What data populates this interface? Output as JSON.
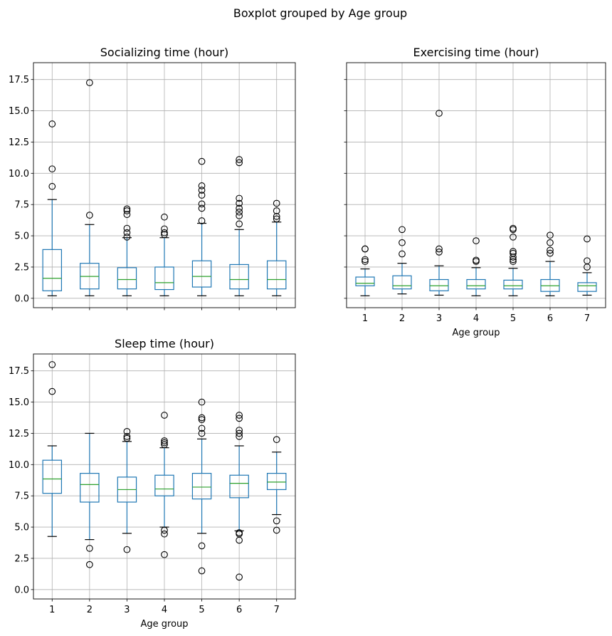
{
  "suptitle": "Boxplot grouped by Age group",
  "colors": {
    "box": "#1f77b4",
    "median": "#2ca02c",
    "grid": "#b0b0b0",
    "outlier": "#000000"
  },
  "chart_data": [
    {
      "type": "box",
      "title": "Socializing time (hour)",
      "xlabel": "",
      "ylabel": "",
      "categories": [
        "1",
        "2",
        "3",
        "4",
        "5",
        "6",
        "7"
      ],
      "ylim": [
        -0.75,
        18.85
      ],
      "yticks": [
        "0.0",
        "2.5",
        "5.0",
        "7.5",
        "10.0",
        "12.5",
        "15.0",
        "17.5"
      ],
      "grid": true,
      "boxes": [
        {
          "whislo": 0.2,
          "q1": 0.6,
          "med": 1.6,
          "q3": 3.9,
          "whishi": 7.9,
          "fliers": [
            8.95,
            10.35,
            13.95
          ]
        },
        {
          "whislo": 0.2,
          "q1": 0.75,
          "med": 1.75,
          "q3": 2.8,
          "whishi": 5.9,
          "fliers": [
            6.65,
            17.25
          ]
        },
        {
          "whislo": 0.2,
          "q1": 0.75,
          "med": 1.5,
          "q3": 2.45,
          "whishi": 4.85,
          "fliers": [
            4.9,
            5.25,
            5.6,
            6.7,
            7.0,
            7.15
          ]
        },
        {
          "whislo": 0.2,
          "q1": 0.7,
          "med": 1.25,
          "q3": 2.5,
          "whishi": 4.85,
          "fliers": [
            5.1,
            5.25,
            5.55,
            6.5
          ]
        },
        {
          "whislo": 0.2,
          "q1": 0.9,
          "med": 1.75,
          "q3": 3.0,
          "whishi": 6.0,
          "fliers": [
            6.2,
            7.2,
            7.55,
            8.25,
            8.65,
            9.0,
            10.95
          ]
        },
        {
          "whislo": 0.2,
          "q1": 0.75,
          "med": 1.5,
          "q3": 2.7,
          "whishi": 5.5,
          "fliers": [
            5.95,
            6.6,
            6.9,
            7.2,
            7.6,
            8.0,
            10.85,
            11.1
          ]
        },
        {
          "whislo": 0.2,
          "q1": 0.75,
          "med": 1.5,
          "q3": 3.0,
          "whishi": 6.1,
          "fliers": [
            6.35,
            6.55,
            7.0,
            7.6
          ]
        }
      ]
    },
    {
      "type": "box",
      "title": "Exercising time (hour)",
      "xlabel": "Age group",
      "ylabel": "",
      "categories": [
        "1",
        "2",
        "3",
        "4",
        "5",
        "6",
        "7"
      ],
      "ylim": [
        -0.75,
        18.85
      ],
      "yticks": [],
      "grid": true,
      "boxes": [
        {
          "whislo": 0.2,
          "q1": 1.0,
          "med": 1.2,
          "q3": 1.7,
          "whishi": 2.35,
          "fliers": [
            2.95,
            3.1,
            3.95,
            3.95
          ]
        },
        {
          "whislo": 0.35,
          "q1": 0.75,
          "med": 1.0,
          "q3": 1.8,
          "whishi": 2.8,
          "fliers": [
            3.55,
            4.45,
            5.5
          ]
        },
        {
          "whislo": 0.25,
          "q1": 0.6,
          "med": 1.0,
          "q3": 1.5,
          "whishi": 2.6,
          "fliers": [
            3.7,
            3.95,
            14.8
          ]
        },
        {
          "whislo": 0.2,
          "q1": 0.75,
          "med": 1.0,
          "q3": 1.5,
          "whishi": 2.45,
          "fliers": [
            2.95,
            3.05,
            4.6
          ]
        },
        {
          "whislo": 0.2,
          "q1": 0.75,
          "med": 1.0,
          "q3": 1.45,
          "whishi": 2.4,
          "fliers": [
            2.95,
            3.1,
            3.3,
            3.6,
            3.75,
            4.9,
            5.5,
            5.6
          ]
        },
        {
          "whislo": 0.2,
          "q1": 0.55,
          "med": 1.0,
          "q3": 1.5,
          "whishi": 2.95,
          "fliers": [
            3.6,
            3.85,
            4.45,
            5.05
          ]
        },
        {
          "whislo": 0.25,
          "q1": 0.55,
          "med": 1.0,
          "q3": 1.25,
          "whishi": 2.05,
          "fliers": [
            2.5,
            3.0,
            4.75
          ]
        }
      ]
    },
    {
      "type": "box",
      "title": "Sleep time (hour)",
      "xlabel": "Age group",
      "ylabel": "",
      "categories": [
        "1",
        "2",
        "3",
        "4",
        "5",
        "6",
        "7"
      ],
      "ylim": [
        -0.75,
        18.85
      ],
      "yticks": [
        "0.0",
        "2.5",
        "5.0",
        "7.5",
        "10.0",
        "12.5",
        "15.0",
        "17.5"
      ],
      "grid": true,
      "boxes": [
        {
          "whislo": 4.25,
          "q1": 7.7,
          "med": 8.85,
          "q3": 10.35,
          "whishi": 11.5,
          "fliers": [
            15.85,
            18.0
          ]
        },
        {
          "whislo": 4.0,
          "q1": 7.0,
          "med": 8.4,
          "q3": 9.3,
          "whishi": 12.5,
          "fliers": [
            3.3,
            2.0
          ]
        },
        {
          "whislo": 4.5,
          "q1": 7.0,
          "med": 8.0,
          "q3": 9.0,
          "whishi": 11.85,
          "fliers": [
            3.2,
            12.1,
            12.25,
            12.65
          ]
        },
        {
          "whislo": 5.0,
          "q1": 7.5,
          "med": 8.05,
          "q3": 9.15,
          "whishi": 11.35,
          "fliers": [
            2.8,
            4.45,
            4.75,
            11.6,
            11.75,
            11.9,
            13.95
          ]
        },
        {
          "whislo": 4.5,
          "q1": 7.25,
          "med": 8.2,
          "q3": 9.3,
          "whishi": 12.05,
          "fliers": [
            1.5,
            3.5,
            12.5,
            12.9,
            13.6,
            13.75,
            15.0
          ]
        },
        {
          "whislo": 4.7,
          "q1": 7.35,
          "med": 8.5,
          "q3": 9.15,
          "whishi": 11.5,
          "fliers": [
            1.0,
            3.95,
            4.45,
            4.55,
            12.25,
            12.5,
            12.75,
            13.7,
            13.95
          ]
        },
        {
          "whislo": 6.0,
          "q1": 8.0,
          "med": 8.6,
          "q3": 9.3,
          "whishi": 11.0,
          "fliers": [
            4.75,
            5.5,
            12.0
          ]
        }
      ]
    }
  ]
}
